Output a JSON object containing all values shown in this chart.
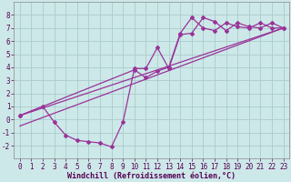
{
  "background_color": "#cde8e8",
  "grid_color": "#aacccc",
  "line_color": "#993399",
  "xlabel": "Windchill (Refroidissement éolien,°C)",
  "xlim": [
    -0.5,
    23.5
  ],
  "ylim": [
    -3.0,
    9.0
  ],
  "xticks": [
    0,
    1,
    2,
    3,
    4,
    5,
    6,
    7,
    8,
    9,
    10,
    11,
    12,
    13,
    14,
    15,
    16,
    17,
    18,
    19,
    20,
    21,
    22,
    23
  ],
  "yticks": [
    -2,
    -1,
    0,
    1,
    2,
    3,
    4,
    5,
    6,
    7,
    8
  ],
  "series1_x": [
    0,
    2,
    3,
    4,
    5,
    6,
    7,
    8,
    9,
    10,
    11,
    12,
    13,
    14,
    15,
    16,
    17,
    18,
    19,
    20,
    21,
    22,
    23
  ],
  "series1_y": [
    0.3,
    1.0,
    -0.2,
    -1.2,
    -1.6,
    -1.7,
    -1.8,
    -2.1,
    -0.2,
    3.9,
    3.9,
    5.5,
    3.9,
    6.5,
    6.6,
    7.8,
    7.5,
    6.8,
    7.4,
    7.1,
    7.0,
    7.4,
    7.0
  ],
  "series2_x": [
    0,
    10,
    11,
    12,
    13,
    14,
    15,
    16,
    17,
    18,
    19,
    20,
    21,
    22,
    23
  ],
  "series2_y": [
    0.3,
    3.8,
    3.2,
    3.7,
    4.0,
    6.6,
    7.8,
    7.0,
    6.8,
    7.4,
    7.1,
    7.0,
    7.4,
    7.0,
    7.0
  ],
  "series3_x": [
    0,
    23
  ],
  "series3_y": [
    -0.5,
    7.0
  ],
  "series4_x": [
    0,
    23
  ],
  "series4_y": [
    0.3,
    7.0
  ],
  "tick_fontsize": 5.5,
  "xlabel_fontsize": 6.0
}
